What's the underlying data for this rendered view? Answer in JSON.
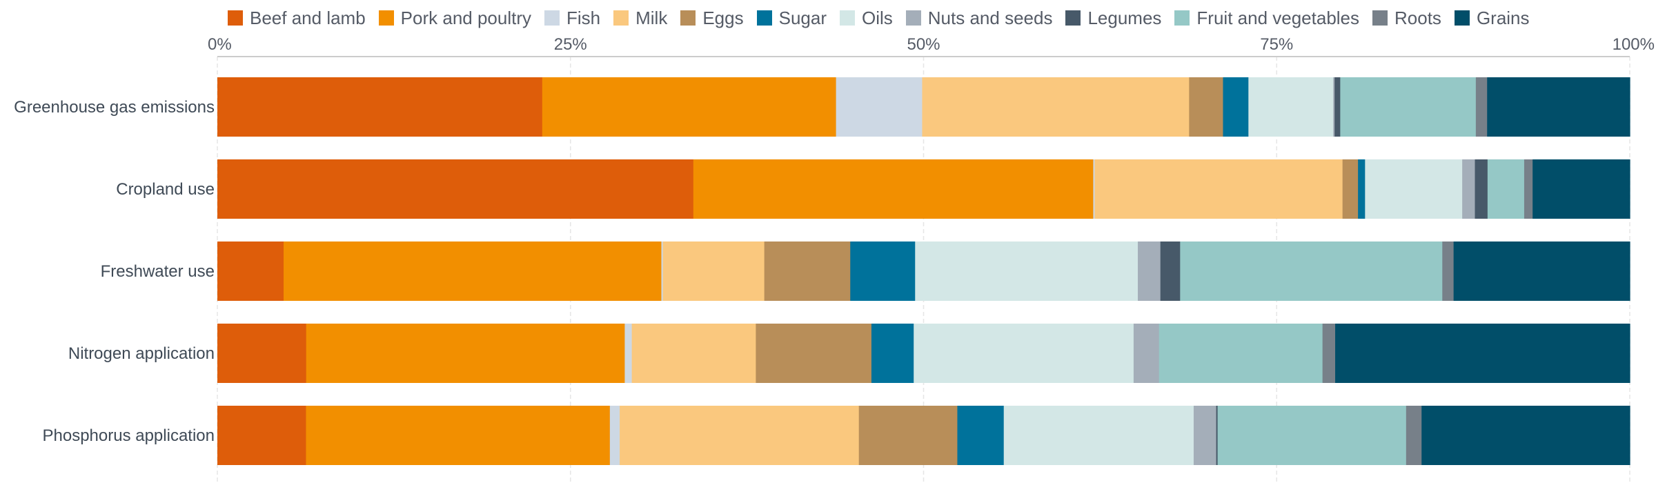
{
  "chart_data": {
    "type": "bar",
    "orientation": "horizontal",
    "stacked": "percent",
    "title": "",
    "xlabel": "",
    "ylabel": "",
    "xlim": [
      0,
      100
    ],
    "x_ticks": [
      "0%",
      "25%",
      "50%",
      "75%",
      "100%"
    ],
    "x_axis_position": "top",
    "grid": true,
    "legend_position": "top",
    "categories": [
      "Greenhouse gas emissions",
      "Cropland use",
      "Freshwater use",
      "Nitrogen application",
      "Phosphorus application"
    ],
    "series": [
      {
        "name": "Beef and lamb",
        "color": "#de5d0a",
        "values": [
          23.0,
          33.8,
          4.7,
          6.3,
          6.3
        ]
      },
      {
        "name": "Pork and poultry",
        "color": "#f28f00",
        "values": [
          20.8,
          28.4,
          26.8,
          22.6,
          21.6
        ]
      },
      {
        "name": "Fish",
        "color": "#cdd8e4",
        "values": [
          6.1,
          0.1,
          0.1,
          0.5,
          0.7
        ]
      },
      {
        "name": "Milk",
        "color": "#fac87e",
        "values": [
          18.9,
          17.6,
          7.2,
          8.8,
          17.0
        ]
      },
      {
        "name": "Eggs",
        "color": "#b88e59",
        "values": [
          2.4,
          1.1,
          6.1,
          8.2,
          7.0
        ]
      },
      {
        "name": "Sugar",
        "color": "#00729b",
        "values": [
          1.8,
          0.5,
          4.6,
          3.0,
          3.3
        ]
      },
      {
        "name": "Oils",
        "color": "#d3e7e6",
        "values": [
          6.0,
          6.9,
          15.8,
          15.6,
          13.5
        ]
      },
      {
        "name": "Nuts and seeds",
        "color": "#a4aeb9",
        "values": [
          0.1,
          0.9,
          1.6,
          1.8,
          1.6
        ]
      },
      {
        "name": "Legumes",
        "color": "#475969",
        "values": [
          0.4,
          0.9,
          1.4,
          0.0,
          0.1
        ]
      },
      {
        "name": "Fruit and vegetables",
        "color": "#95c8c6",
        "values": [
          9.6,
          2.6,
          18.6,
          11.6,
          13.4
        ]
      },
      {
        "name": "Roots",
        "color": "#778089",
        "values": [
          0.8,
          0.6,
          0.8,
          0.9,
          1.1
        ]
      },
      {
        "name": "Grains",
        "color": "#014e69",
        "values": [
          10.1,
          6.9,
          12.5,
          20.9,
          14.8
        ]
      }
    ]
  }
}
